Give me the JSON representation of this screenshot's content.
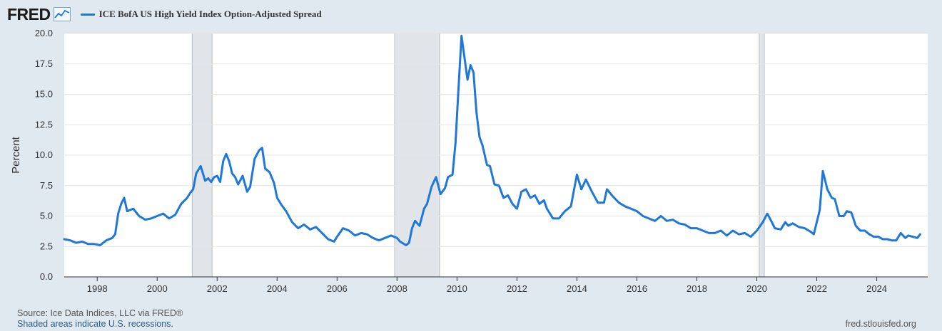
{
  "header": {
    "logo_text": "FRED",
    "logo_icon": "chart-line-icon"
  },
  "colors": {
    "series": "#1f77d9",
    "recession": "#e1e5ea",
    "background": "#e1e9f0",
    "plot_background": "#ffffff"
  },
  "chart_data": {
    "type": "line",
    "title": "",
    "ylabel": "Percent",
    "xlabel": "",
    "ylim": [
      0,
      20
    ],
    "xlim": [
      1996.9,
      2025.7
    ],
    "y_ticks": [
      "0.0",
      "2.5",
      "5.0",
      "7.5",
      "10.0",
      "12.5",
      "15.0",
      "17.5",
      "20.0"
    ],
    "y_tick_values": [
      0,
      2.5,
      5,
      7.5,
      10,
      12.5,
      15,
      17.5,
      20
    ],
    "x_ticks": [
      "1998",
      "2000",
      "2002",
      "2004",
      "2006",
      "2008",
      "2010",
      "2012",
      "2014",
      "2016",
      "2018",
      "2020",
      "2022",
      "2024"
    ],
    "x_tick_values": [
      1998,
      2000,
      2002,
      2004,
      2006,
      2008,
      2010,
      2012,
      2014,
      2016,
      2018,
      2020,
      2022,
      2024
    ],
    "grid": "horizontal",
    "legend_position": "top-left",
    "recessions": [
      [
        2001.17,
        2001.83
      ],
      [
        2007.92,
        2009.42
      ],
      [
        2020.08,
        2020.25
      ]
    ],
    "series": [
      {
        "name": "ICE BofA US High Yield Index Option-Adjusted Spread",
        "points": [
          [
            1996.9,
            3.1
          ],
          [
            1997.1,
            3.0
          ],
          [
            1997.3,
            2.8
          ],
          [
            1997.5,
            2.9
          ],
          [
            1997.7,
            2.7
          ],
          [
            1997.9,
            2.7
          ],
          [
            1998.1,
            2.6
          ],
          [
            1998.3,
            3.0
          ],
          [
            1998.5,
            3.2
          ],
          [
            1998.6,
            3.5
          ],
          [
            1998.7,
            5.2
          ],
          [
            1998.8,
            6.0
          ],
          [
            1998.9,
            6.5
          ],
          [
            1999.0,
            5.4
          ],
          [
            1999.2,
            5.6
          ],
          [
            1999.4,
            5.0
          ],
          [
            1999.6,
            4.7
          ],
          [
            1999.8,
            4.8
          ],
          [
            2000.0,
            5.0
          ],
          [
            2000.2,
            5.2
          ],
          [
            2000.4,
            4.8
          ],
          [
            2000.6,
            5.1
          ],
          [
            2000.8,
            6.0
          ],
          [
            2001.0,
            6.5
          ],
          [
            2001.1,
            6.9
          ],
          [
            2001.2,
            7.2
          ],
          [
            2001.3,
            8.5
          ],
          [
            2001.45,
            9.1
          ],
          [
            2001.6,
            7.9
          ],
          [
            2001.7,
            8.1
          ],
          [
            2001.8,
            7.8
          ],
          [
            2001.9,
            8.2
          ],
          [
            2002.0,
            8.3
          ],
          [
            2002.1,
            7.8
          ],
          [
            2002.2,
            9.5
          ],
          [
            2002.3,
            10.1
          ],
          [
            2002.4,
            9.5
          ],
          [
            2002.5,
            8.5
          ],
          [
            2002.6,
            8.2
          ],
          [
            2002.7,
            7.6
          ],
          [
            2002.85,
            8.3
          ],
          [
            2003.0,
            7.0
          ],
          [
            2003.1,
            7.4
          ],
          [
            2003.25,
            9.7
          ],
          [
            2003.4,
            10.4
          ],
          [
            2003.5,
            10.6
          ],
          [
            2003.6,
            8.9
          ],
          [
            2003.75,
            8.6
          ],
          [
            2003.9,
            7.7
          ],
          [
            2004.0,
            6.5
          ],
          [
            2004.15,
            5.9
          ],
          [
            2004.3,
            5.4
          ],
          [
            2004.5,
            4.5
          ],
          [
            2004.7,
            4.0
          ],
          [
            2004.9,
            4.3
          ],
          [
            2005.1,
            3.9
          ],
          [
            2005.3,
            4.1
          ],
          [
            2005.5,
            3.6
          ],
          [
            2005.7,
            3.1
          ],
          [
            2005.9,
            2.9
          ],
          [
            2006.0,
            3.3
          ],
          [
            2006.2,
            4.0
          ],
          [
            2006.4,
            3.8
          ],
          [
            2006.6,
            3.4
          ],
          [
            2006.8,
            3.6
          ],
          [
            2007.0,
            3.5
          ],
          [
            2007.2,
            3.2
          ],
          [
            2007.4,
            3.0
          ],
          [
            2007.6,
            3.2
          ],
          [
            2007.8,
            3.4
          ],
          [
            2008.0,
            3.2
          ],
          [
            2008.1,
            2.9
          ],
          [
            2008.3,
            2.6
          ],
          [
            2008.4,
            2.8
          ],
          [
            2008.5,
            4.0
          ],
          [
            2008.6,
            4.6
          ],
          [
            2008.75,
            4.2
          ],
          [
            2008.9,
            5.6
          ],
          [
            2009.0,
            6.0
          ],
          [
            2009.15,
            7.4
          ],
          [
            2009.3,
            8.2
          ],
          [
            2009.45,
            6.8
          ],
          [
            2009.6,
            7.3
          ],
          [
            2009.7,
            8.2
          ],
          [
            2009.85,
            8.4
          ],
          [
            2009.95,
            11.0
          ],
          [
            2010.05,
            15.5
          ],
          [
            2010.15,
            19.8
          ],
          [
            2010.25,
            18.0
          ],
          [
            2010.35,
            16.2
          ],
          [
            2010.45,
            17.4
          ],
          [
            2010.55,
            16.8
          ],
          [
            2010.65,
            13.5
          ],
          [
            2010.75,
            11.5
          ],
          [
            2010.85,
            10.8
          ],
          [
            2011.0,
            9.2
          ],
          [
            2011.1,
            9.1
          ],
          [
            2011.25,
            7.6
          ],
          [
            2011.4,
            7.5
          ],
          [
            2011.55,
            6.5
          ],
          [
            2011.7,
            6.7
          ],
          [
            2011.85,
            6.0
          ],
          [
            2012.0,
            5.6
          ],
          [
            2012.15,
            7.0
          ],
          [
            2012.3,
            7.2
          ],
          [
            2012.45,
            6.5
          ],
          [
            2012.6,
            6.7
          ],
          [
            2012.75,
            6.0
          ],
          [
            2012.9,
            6.3
          ],
          [
            2013.0,
            5.6
          ],
          [
            2013.2,
            4.8
          ],
          [
            2013.4,
            4.8
          ],
          [
            2013.6,
            5.4
          ],
          [
            2013.8,
            5.8
          ],
          [
            2014.0,
            8.4
          ],
          [
            2014.15,
            7.2
          ],
          [
            2014.3,
            8.0
          ],
          [
            2014.5,
            7.0
          ],
          [
            2014.7,
            6.1
          ],
          [
            2014.9,
            6.1
          ],
          [
            2015.0,
            7.2
          ],
          [
            2015.2,
            6.6
          ],
          [
            2015.4,
            6.1
          ],
          [
            2015.6,
            5.8
          ],
          [
            2015.8,
            5.6
          ],
          [
            2016.0,
            5.4
          ],
          [
            2016.2,
            5.0
          ],
          [
            2016.4,
            4.8
          ],
          [
            2016.6,
            4.6
          ],
          [
            2016.8,
            5.0
          ],
          [
            2017.0,
            4.6
          ],
          [
            2017.2,
            4.7
          ],
          [
            2017.4,
            4.4
          ],
          [
            2017.6,
            4.3
          ],
          [
            2017.8,
            4.0
          ],
          [
            2018.0,
            4.0
          ],
          [
            2018.2,
            3.8
          ],
          [
            2018.4,
            3.6
          ],
          [
            2018.6,
            3.6
          ],
          [
            2018.8,
            3.8
          ],
          [
            2019.0,
            3.4
          ],
          [
            2019.2,
            3.8
          ],
          [
            2019.4,
            3.5
          ],
          [
            2019.6,
            3.6
          ],
          [
            2019.8,
            3.3
          ],
          [
            2020.0,
            3.8
          ],
          [
            2020.2,
            4.5
          ],
          [
            2020.35,
            5.2
          ],
          [
            2020.5,
            4.5
          ],
          [
            2020.6,
            4.0
          ],
          [
            2020.8,
            3.9
          ],
          [
            2020.95,
            4.5
          ],
          [
            2021.05,
            4.2
          ],
          [
            2021.2,
            4.4
          ],
          [
            2021.4,
            4.1
          ],
          [
            2021.6,
            4.0
          ],
          [
            2021.8,
            3.7
          ],
          [
            2021.9,
            3.5
          ],
          [
            2022.0,
            4.5
          ],
          [
            2022.1,
            5.5
          ],
          [
            2022.2,
            8.7
          ],
          [
            2022.35,
            7.2
          ],
          [
            2022.5,
            6.5
          ],
          [
            2022.6,
            6.4
          ],
          [
            2022.75,
            5.0
          ],
          [
            2022.9,
            5.0
          ],
          [
            2023.0,
            5.4
          ],
          [
            2023.15,
            5.3
          ],
          [
            2023.3,
            4.2
          ],
          [
            2023.45,
            3.8
          ],
          [
            2023.6,
            3.8
          ],
          [
            2023.75,
            3.5
          ],
          [
            2023.9,
            3.3
          ],
          [
            2024.05,
            3.3
          ],
          [
            2024.2,
            3.1
          ],
          [
            2024.35,
            3.1
          ],
          [
            2024.5,
            3.0
          ],
          [
            2024.65,
            3.0
          ],
          [
            2024.8,
            3.6
          ],
          [
            2024.95,
            3.2
          ],
          [
            2025.05,
            3.4
          ],
          [
            2025.2,
            3.3
          ],
          [
            2025.35,
            3.2
          ],
          [
            2025.45,
            3.5
          ]
        ]
      }
    ]
  },
  "footer": {
    "source": "Source: Ice Data Indices, LLC via FRED®",
    "note": "Shaded areas indicate U.S. recessions.",
    "url": "fred.stlouisfed.org"
  }
}
